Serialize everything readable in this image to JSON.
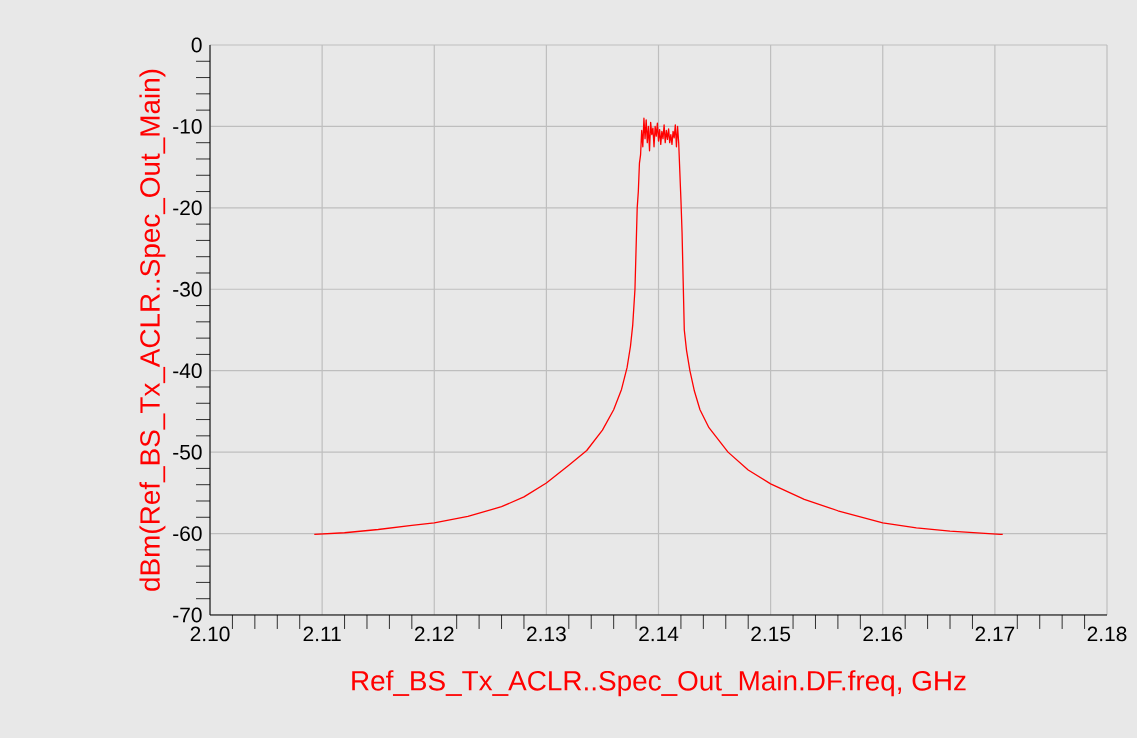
{
  "chart_data": {
    "type": "line",
    "xlabel": "Ref_BS_Tx_ACLR..Spec_Out_Main.DF.freq, GHz",
    "ylabel": "dBm(Ref_BS_Tx_ACLR..Spec_Out_Main)",
    "xlim": [
      2.1,
      2.18
    ],
    "ylim": [
      -70,
      0
    ],
    "xticks": [
      {
        "value": 2.1,
        "label": "2.10"
      },
      {
        "value": 2.11,
        "label": "2.11"
      },
      {
        "value": 2.12,
        "label": "2.12"
      },
      {
        "value": 2.13,
        "label": "2.13"
      },
      {
        "value": 2.14,
        "label": "2.14"
      },
      {
        "value": 2.15,
        "label": "2.15"
      },
      {
        "value": 2.16,
        "label": "2.16"
      },
      {
        "value": 2.17,
        "label": "2.17"
      },
      {
        "value": 2.18,
        "label": "2.18"
      }
    ],
    "yticks": [
      -70,
      -60,
      -50,
      -40,
      -30,
      -20,
      -10,
      0
    ],
    "grid": true,
    "marker": "none",
    "line_style": "solid",
    "series": [
      {
        "color": "#ff0000",
        "x": [
          2.1093,
          2.112,
          2.115,
          2.118,
          2.12,
          2.123,
          2.126,
          2.128,
          2.13,
          2.132,
          2.1336,
          2.135,
          2.136,
          2.1367,
          2.1372,
          2.1375,
          2.1377,
          2.1379,
          2.138,
          2.1381,
          2.1382,
          2.1383,
          2.1384,
          2.1385,
          2.1386,
          2.1387,
          2.1388,
          2.1389,
          2.139,
          2.1391,
          2.1392,
          2.1393,
          2.1394,
          2.1395,
          2.1396,
          2.1397,
          2.1398,
          2.1399,
          2.14,
          2.1401,
          2.1402,
          2.1403,
          2.1404,
          2.1405,
          2.1406,
          2.1407,
          2.1408,
          2.1409,
          2.141,
          2.1411,
          2.1412,
          2.1413,
          2.1414,
          2.1415,
          2.1416,
          2.1417,
          2.1418,
          2.1419,
          2.142,
          2.1421,
          2.1422,
          2.1423,
          2.1425,
          2.1428,
          2.1432,
          2.1437,
          2.1445,
          2.1462,
          2.148,
          2.15,
          2.153,
          2.156,
          2.16,
          2.163,
          2.166,
          2.1705,
          2.1707
        ],
        "values": [
          -60.1,
          -59.9,
          -59.5,
          -59.0,
          -58.7,
          -57.9,
          -56.7,
          -55.5,
          -53.8,
          -51.6,
          -49.8,
          -47.3,
          -44.8,
          -42.3,
          -39.6,
          -37.0,
          -34.4,
          -30.0,
          -25.0,
          -20.0,
          -18.0,
          -14.5,
          -13.5,
          -10.5,
          -12.5,
          -9.0,
          -11.5,
          -9.2,
          -12.0,
          -10.0,
          -13.0,
          -9.5,
          -11.0,
          -10.2,
          -12.5,
          -10.0,
          -11.2,
          -9.6,
          -11.8,
          -10.4,
          -12.2,
          -10.6,
          -11.5,
          -9.8,
          -12.0,
          -10.5,
          -11.6,
          -10.3,
          -12.0,
          -11.0,
          -12.2,
          -10.6,
          -11.4,
          -9.8,
          -12.5,
          -10.0,
          -12.0,
          -15.5,
          -19.0,
          -23.0,
          -29.0,
          -35.0,
          -37.5,
          -40.0,
          -42.5,
          -44.8,
          -47.0,
          -50.0,
          -52.2,
          -53.9,
          -55.8,
          -57.2,
          -58.7,
          -59.3,
          -59.7,
          -60.1,
          -60.1
        ]
      }
    ]
  }
}
